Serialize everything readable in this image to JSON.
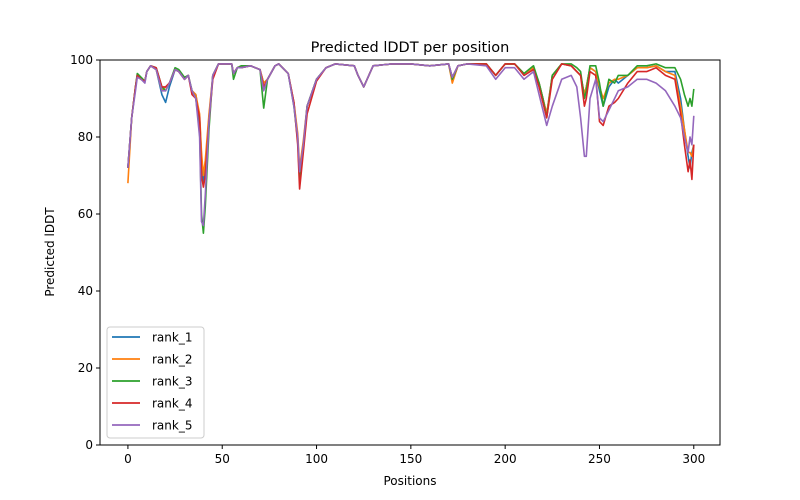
{
  "chart_data": {
    "type": "line",
    "title": "Predicted lDDT per position",
    "xlabel": "Positions",
    "ylabel": "Predicted lDDT",
    "xlim": [
      -14.8,
      313.9
    ],
    "ylim": [
      0,
      100
    ],
    "xticks": [
      0,
      50,
      100,
      150,
      200,
      250,
      300
    ],
    "yticks": [
      0,
      20,
      40,
      60,
      80,
      100
    ],
    "grid": false,
    "legend_position": "lower-left",
    "x": [
      0,
      2,
      4,
      5,
      7,
      9,
      10,
      12,
      15,
      18,
      20,
      22,
      25,
      27,
      30,
      32,
      34,
      36,
      38,
      39,
      40,
      41,
      43,
      45,
      48,
      50,
      55,
      56,
      58,
      60,
      65,
      70,
      72,
      74,
      78,
      80,
      85,
      88,
      90,
      91,
      93,
      95,
      100,
      105,
      110,
      120,
      122,
      125,
      130,
      140,
      150,
      160,
      170,
      172,
      175,
      180,
      190,
      195,
      200,
      205,
      210,
      215,
      218,
      220,
      222,
      225,
      230,
      235,
      238,
      240,
      242,
      243,
      245,
      248,
      250,
      252,
      255,
      258,
      260,
      265,
      270,
      275,
      280,
      285,
      290,
      293,
      295,
      297,
      298,
      299,
      300
    ],
    "series": [
      {
        "name": "rank_1",
        "color": "#1f77b4",
        "values": [
          72,
          85,
          93,
          96,
          95,
          94.5,
          97,
          98.5,
          97.5,
          91,
          89,
          93,
          97.5,
          97,
          95,
          96,
          92,
          91,
          85,
          75,
          68,
          72,
          85,
          96,
          99,
          99,
          99,
          96.5,
          98,
          98,
          98.5,
          97.5,
          94,
          95,
          98.5,
          99,
          96.5,
          89,
          80,
          70,
          78,
          88,
          95,
          98,
          99,
          98.5,
          96,
          93,
          98.5,
          99,
          99,
          98.5,
          99,
          95.5,
          98.5,
          99,
          99,
          96,
          99,
          99,
          96.5,
          98,
          94,
          90,
          86,
          96,
          99,
          98.5,
          97,
          96,
          91,
          93,
          98,
          97,
          92,
          88,
          93,
          95,
          94,
          96,
          98,
          98,
          98.5,
          97,
          97,
          90,
          82,
          75,
          72,
          76,
          78
        ]
      },
      {
        "name": "rank_2",
        "color": "#ff7f0e",
        "values": [
          68,
          85,
          93,
          96,
          95,
          94.5,
          97,
          98.5,
          97.5,
          92,
          93,
          94,
          97.5,
          97,
          95,
          96,
          92,
          91,
          86,
          76,
          70,
          74,
          86,
          96,
          99,
          99,
          99,
          96.5,
          98,
          98,
          98.5,
          97.5,
          94,
          95,
          98.5,
          99,
          96.5,
          89,
          81,
          72,
          79,
          88,
          95,
          98,
          99,
          98.5,
          96,
          93,
          98.5,
          99,
          99,
          98.5,
          99,
          94,
          98.5,
          99,
          99,
          96,
          99,
          99,
          96.5,
          98,
          94,
          90,
          86,
          96,
          99,
          98.5,
          97,
          96,
          91,
          93,
          98,
          97,
          93,
          90,
          94,
          95,
          95,
          96,
          98,
          98,
          98.5,
          97,
          96,
          88,
          82,
          76,
          76,
          75,
          78
        ]
      },
      {
        "name": "rank_3",
        "color": "#2ca02c",
        "values": [
          72,
          85,
          93,
          96.5,
          95.5,
          94.5,
          97,
          98.5,
          98,
          93,
          92,
          94,
          98,
          97.5,
          95.5,
          96,
          92,
          90,
          82,
          60,
          55,
          62,
          82,
          96,
          99,
          99,
          99,
          95,
          98,
          98.5,
          98.5,
          97.5,
          87.5,
          95,
          98.5,
          99,
          96.5,
          88,
          79,
          69,
          77,
          88,
          95,
          98,
          99,
          98.5,
          96,
          93,
          98.5,
          99,
          99,
          98.5,
          99,
          95,
          98.5,
          99,
          99,
          96,
          99,
          99,
          96.5,
          98.5,
          94,
          90,
          85,
          96,
          99,
          99,
          98,
          97,
          90,
          92,
          98.5,
          98.5,
          94,
          88,
          95,
          94,
          96,
          96,
          98.5,
          98.5,
          99,
          98,
          98,
          95,
          91,
          88,
          90,
          88,
          92.5
        ]
      },
      {
        "name": "rank_4",
        "color": "#d62728",
        "values": [
          72,
          85,
          93,
          96,
          95,
          94.5,
          97,
          98.5,
          98,
          93,
          93,
          94,
          97.5,
          97,
          95,
          96,
          91,
          90,
          85,
          70,
          67,
          70,
          84,
          95,
          99,
          99,
          99,
          96.5,
          98,
          98,
          98.5,
          97.5,
          93,
          95,
          98.5,
          99,
          96.5,
          89,
          78,
          66.5,
          76,
          86,
          94.5,
          98,
          99,
          98.5,
          96,
          93,
          98.5,
          99,
          99,
          98.5,
          99,
          95.5,
          98.5,
          99,
          99,
          96,
          99,
          99,
          96,
          97.5,
          93,
          89,
          85,
          95,
          99,
          98.5,
          97,
          96,
          88,
          90,
          97,
          96,
          84,
          83,
          88,
          89,
          90,
          94,
          97,
          97,
          98,
          96,
          95,
          86,
          78,
          71,
          74,
          69,
          78
        ]
      },
      {
        "name": "rank_5",
        "color": "#9467bd",
        "values": [
          72,
          85,
          92,
          95.5,
          95,
          94,
          97,
          98.5,
          97.5,
          92,
          92,
          94,
          97.5,
          97,
          95,
          96,
          92,
          90,
          80,
          58,
          57,
          65,
          84,
          96,
          99,
          99,
          99,
          96.5,
          98,
          98,
          98.5,
          97.5,
          92,
          95,
          98.5,
          99,
          96.5,
          88,
          80,
          71,
          78,
          88,
          95,
          98,
          99,
          98.5,
          96,
          93,
          98.5,
          99,
          99,
          98.5,
          99,
          95.5,
          98.5,
          99,
          98.5,
          95,
          98,
          98,
          95,
          97,
          91,
          87,
          83,
          88,
          95,
          96,
          93,
          85,
          75,
          75,
          90,
          95,
          85,
          84,
          87,
          90,
          92,
          93,
          95,
          95,
          94,
          92,
          88,
          85,
          80,
          76,
          80,
          78,
          85.5
        ]
      }
    ]
  }
}
